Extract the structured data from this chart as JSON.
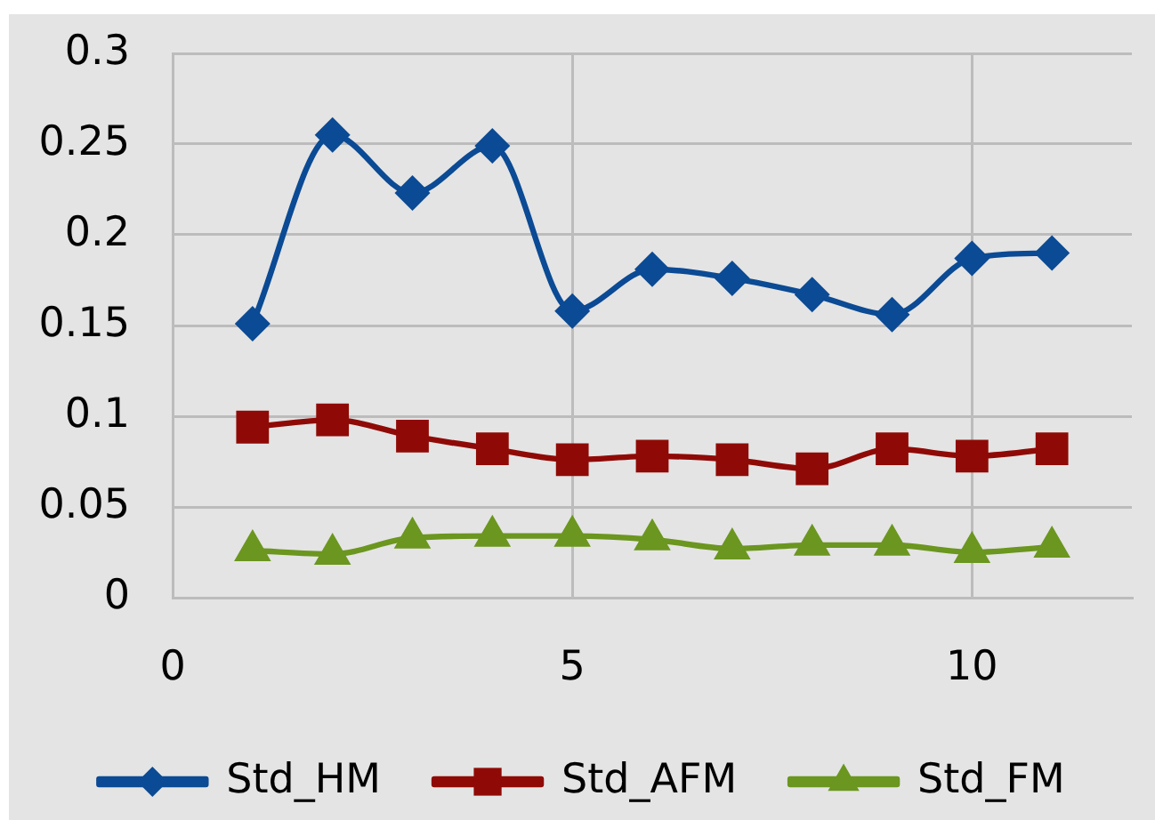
{
  "chart_data": {
    "type": "line",
    "x": [
      1,
      2,
      3,
      4,
      5,
      6,
      7,
      8,
      9,
      10,
      11
    ],
    "series": [
      {
        "name": "Std_HM",
        "color": "#0b4a94",
        "marker": "diamond",
        "values": [
          0.151,
          0.255,
          0.223,
          0.249,
          0.158,
          0.181,
          0.176,
          0.167,
          0.156,
          0.187,
          0.19
        ]
      },
      {
        "name": "Std_AFM",
        "color": "#8f0a06",
        "marker": "square",
        "values": [
          0.094,
          0.098,
          0.089,
          0.082,
          0.076,
          0.078,
          0.076,
          0.071,
          0.082,
          0.078,
          0.082
        ]
      },
      {
        "name": "Std_FM",
        "color": "#6b961f",
        "marker": "triangle",
        "values": [
          0.026,
          0.024,
          0.033,
          0.034,
          0.034,
          0.032,
          0.027,
          0.029,
          0.029,
          0.025,
          0.028
        ]
      }
    ],
    "xlim": [
      0,
      12
    ],
    "xticks": [
      0,
      5,
      10
    ],
    "ylim": [
      0,
      0.3
    ],
    "yticks": [
      0,
      0.05,
      0.1,
      0.15,
      0.2,
      0.25,
      0.3
    ],
    "grid": true,
    "legend": "bottom",
    "line_style": "solid"
  }
}
